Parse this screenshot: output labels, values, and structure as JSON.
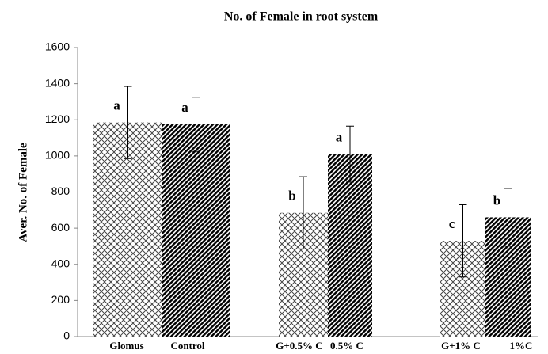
{
  "chart_data": {
    "type": "bar",
    "title": "No. of  Female  in root system",
    "y_label": "Aver. No. of Female",
    "categories": [
      "Glomus",
      "Control",
      "G+0.5% C",
      "0.5% C",
      "G+1% C",
      "1%C"
    ],
    "values": [
      1185,
      1175,
      685,
      1010,
      530,
      660
    ],
    "errors": [
      200,
      150,
      200,
      155,
      200,
      160
    ],
    "letters": [
      "a",
      "a",
      "b",
      "a",
      "c",
      "b"
    ],
    "ylim": [
      0,
      1600
    ],
    "yticks": [
      0,
      200,
      400,
      600,
      800,
      1000,
      1200,
      1400,
      1600
    ],
    "grid": false
  }
}
